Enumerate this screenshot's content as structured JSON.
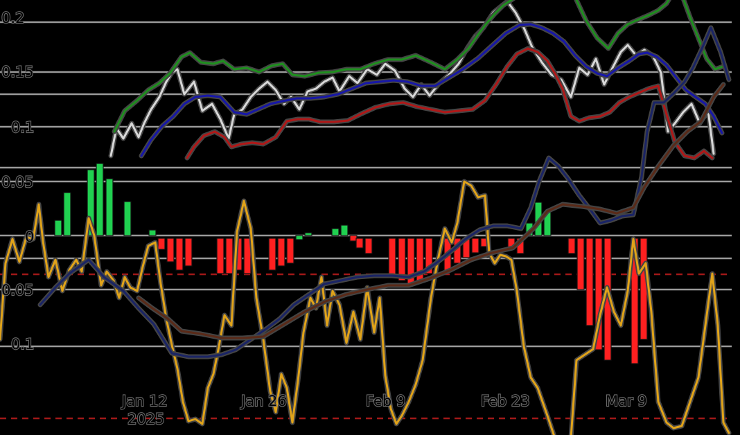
{
  "chart_data": [
    {
      "type": "line",
      "panel": "price",
      "ylim": [
        0.0,
        0.2
      ],
      "yticks": [
        "0.05",
        "0.1",
        "0.15",
        "0.2"
      ],
      "grid": true,
      "x_dates": [
        "2025-01-01",
        "2025-01-04",
        "2025-01-07",
        "2025-01-10",
        "2025-01-12",
        "2025-01-14",
        "2025-01-16",
        "2025-01-18",
        "2025-01-20",
        "2025-01-22",
        "2025-01-24",
        "2025-01-26",
        "2025-01-28",
        "2025-01-30",
        "2025-02-01",
        "2025-02-03",
        "2025-02-05",
        "2025-02-07",
        "2025-02-09",
        "2025-02-11",
        "2025-02-13",
        "2025-02-15",
        "2025-02-17",
        "2025-02-19",
        "2025-02-21",
        "2025-02-23",
        "2025-02-25",
        "2025-02-27",
        "2025-03-01",
        "2025-03-03",
        "2025-03-05",
        "2025-03-07",
        "2025-03-09",
        "2025-03-11",
        "2025-03-13",
        "2025-03-15",
        "2025-03-17",
        "2025-03-19",
        "2025-03-20"
      ],
      "series": [
        {
          "color": "#e0e0e0",
          "values": [
            0.097,
            0.125,
            0.135,
            0.148,
            0.13,
            0.12,
            0.105,
            0.115,
            0.118,
            0.122,
            0.125,
            0.128,
            0.115,
            0.132,
            0.14,
            0.138,
            0.142,
            0.145,
            0.135,
            0.138,
            0.13,
            0.142,
            0.155,
            0.168,
            0.182,
            0.202,
            0.198,
            0.185,
            0.16,
            0.148,
            0.14,
            0.145,
            0.162,
            0.168,
            0.155,
            0.12,
            0.1,
            0.11,
            0.09
          ]
        },
        {
          "color": "#1a8a1a",
          "values": null
        },
        {
          "color": "#1717a8",
          "values": null
        },
        {
          "color": "#b01818",
          "values": null
        }
      ],
      "histogram": {
        "positive_color": "#20d050",
        "negative_color": "#ff2020"
      }
    },
    {
      "type": "line",
      "panel": "oscillator",
      "yticks": [
        "0",
        "0.05",
        "0.1"
      ],
      "xticks": [
        "Jan 12",
        "Jan 26",
        "Feb 9",
        "Feb 23",
        "Mar 9"
      ],
      "year_label": "2025",
      "series": [
        {
          "color": "#e0a31a",
          "values": null
        },
        {
          "color": "#1f2a6a",
          "values": null
        },
        {
          "color": "#5a2a1a",
          "values": null
        }
      ]
    }
  ],
  "axis": {
    "y_top": [
      "0.2",
      "0.15",
      "0.1",
      "0.05",
      "0"
    ],
    "y_bottom": [
      "0.05",
      "0.1"
    ],
    "x": [
      "Jan 12",
      "Jan 26",
      "Feb 9",
      "Feb 23",
      "Mar 9"
    ],
    "year": "2025"
  }
}
